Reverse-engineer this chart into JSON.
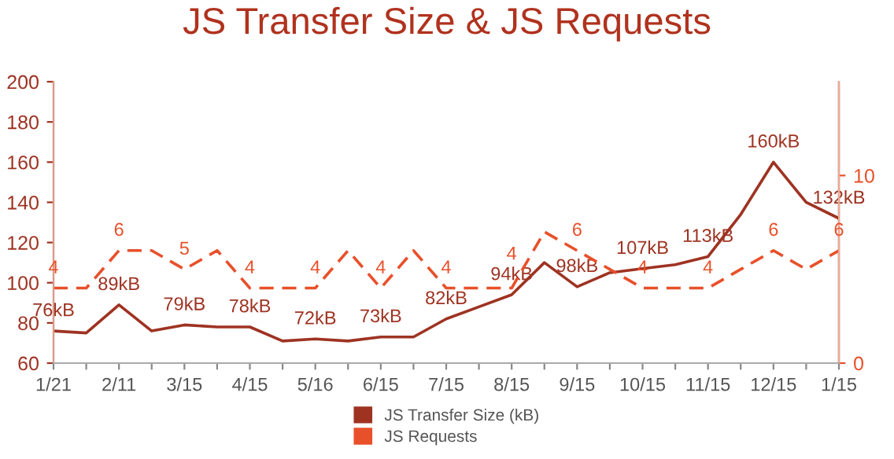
{
  "chart_data": {
    "type": "line",
    "title": "JS Transfer Size & JS Requests",
    "categories": [
      "1/21",
      null,
      "2/11",
      null,
      "3/15",
      null,
      "4/15",
      null,
      "5/16",
      null,
      "6/15",
      null,
      "7/15",
      null,
      "8/15",
      null,
      "9/15",
      null,
      "10/15",
      null,
      "11/15",
      null,
      "12/15",
      null,
      "1/15"
    ],
    "series": [
      {
        "name": "JS Transfer Size (kB)",
        "color": "#9e3322",
        "line_style": "solid",
        "values": [
          76,
          75,
          89,
          76,
          79,
          78,
          78,
          71,
          72,
          71,
          73,
          73,
          82,
          88,
          94,
          110,
          98,
          105,
          107,
          109,
          113,
          134,
          160,
          140,
          132
        ],
        "value_labels": [
          "76kB",
          null,
          "89kB",
          null,
          "79kB",
          null,
          "78kB",
          null,
          "72kB",
          null,
          "73kB",
          null,
          "82kB",
          null,
          "94kB",
          null,
          "98kB",
          null,
          "107kB",
          null,
          "113kB",
          null,
          "160kB",
          null,
          "132kB"
        ]
      },
      {
        "name": "JS Requests",
        "color": "#e8502a",
        "axis": "y2",
        "line_style": "dashed",
        "values": [
          4,
          4,
          6,
          6,
          5,
          6,
          4,
          4,
          4,
          6,
          4,
          6,
          4,
          4,
          4,
          7,
          6,
          5,
          4,
          4,
          4,
          5,
          6,
          5,
          6
        ],
        "value_labels": [
          "4",
          null,
          "6",
          null,
          "5",
          null,
          "4",
          null,
          "4",
          null,
          "4",
          null,
          "4",
          null,
          "4",
          null,
          "6",
          null,
          "4",
          null,
          "4",
          null,
          "6",
          null,
          "6"
        ]
      }
    ],
    "ylim": [
      60,
      200
    ],
    "yticks": [
      60,
      80,
      100,
      120,
      140,
      160,
      180,
      200
    ],
    "y2lim": [
      0,
      15
    ],
    "y2ticks": [
      0,
      10
    ],
    "grid": false,
    "legend": "bottom",
    "marker": "none"
  }
}
